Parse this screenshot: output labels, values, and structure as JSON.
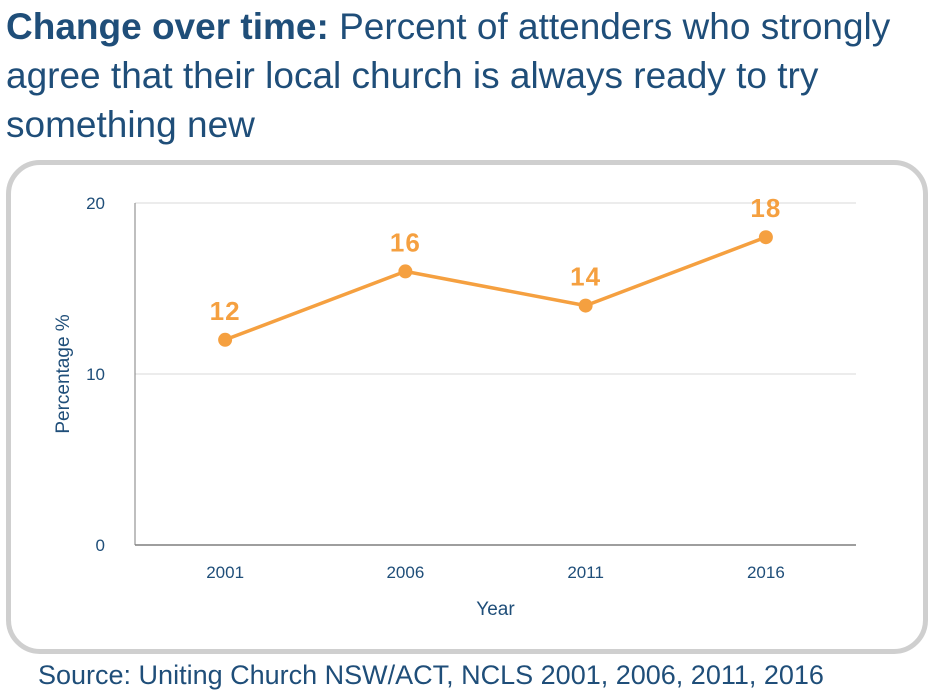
{
  "header": {
    "title_bold": "Change over time:",
    "title_rest": "Percent of attenders who strongly agree that their local church is always ready to try something new"
  },
  "footer": {
    "source": "Source: Uniting Church NSW/ACT, NCLS 2001, 2006, 2011, 2016"
  },
  "colors": {
    "series": "#f5a040",
    "text": "#1f4e79",
    "grid": "#d9d9d9"
  },
  "chart_data": {
    "type": "line",
    "title": "",
    "xlabel": "Year",
    "ylabel": "Percentage %",
    "categories": [
      "2001",
      "2006",
      "2011",
      "2016"
    ],
    "values": [
      12,
      16,
      14,
      18
    ],
    "ylim": [
      0,
      20
    ],
    "yticks": [
      "0",
      "10",
      "20"
    ],
    "grid": true,
    "legend": "none",
    "data_labels": [
      "12",
      "16",
      "14",
      "18"
    ]
  }
}
